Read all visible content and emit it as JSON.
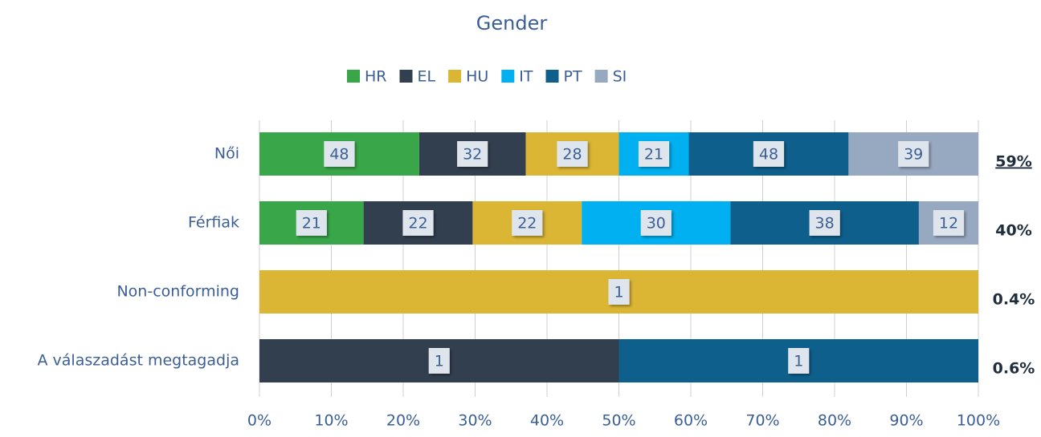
{
  "chart_data": {
    "type": "bar",
    "orientation": "horizontal",
    "stacked": "percent",
    "title": "Gender",
    "categories": [
      "Női",
      "Férfiak",
      "Non-conforming",
      "A válaszadást megtagadja"
    ],
    "series": [
      {
        "name": "HR",
        "color": "#3aa64a",
        "values": [
          48,
          21,
          null,
          null
        ]
      },
      {
        "name": "EL",
        "color": "#323f4f",
        "values": [
          32,
          22,
          null,
          1
        ]
      },
      {
        "name": "HU",
        "color": "#dbb534",
        "values": [
          28,
          22,
          1,
          null
        ]
      },
      {
        "name": "IT",
        "color": "#00b0f0",
        "values": [
          21,
          30,
          null,
          null
        ]
      },
      {
        "name": "PT",
        "color": "#0f5f8c",
        "values": [
          48,
          38,
          null,
          1
        ]
      },
      {
        "name": "SI",
        "color": "#97a9c0",
        "values": [
          39,
          12,
          null,
          null
        ]
      }
    ],
    "row_totals": [
      "59%",
      "40%",
      "0.4%",
      "0.6%"
    ],
    "xlim": [
      0,
      100
    ],
    "xticks": [
      {
        "value": 0,
        "label": "0%"
      },
      {
        "value": 10,
        "label": "10%"
      },
      {
        "value": 20,
        "label": "20%"
      },
      {
        "value": 30,
        "label": "30%"
      },
      {
        "value": 40,
        "label": "40%"
      },
      {
        "value": 50,
        "label": "50%"
      },
      {
        "value": 60,
        "label": "60%"
      },
      {
        "value": 70,
        "label": "70%"
      },
      {
        "value": 80,
        "label": "80%"
      },
      {
        "value": 90,
        "label": "90%"
      },
      {
        "value": 100,
        "label": "100%"
      }
    ],
    "grid": true,
    "legend": "top"
  }
}
